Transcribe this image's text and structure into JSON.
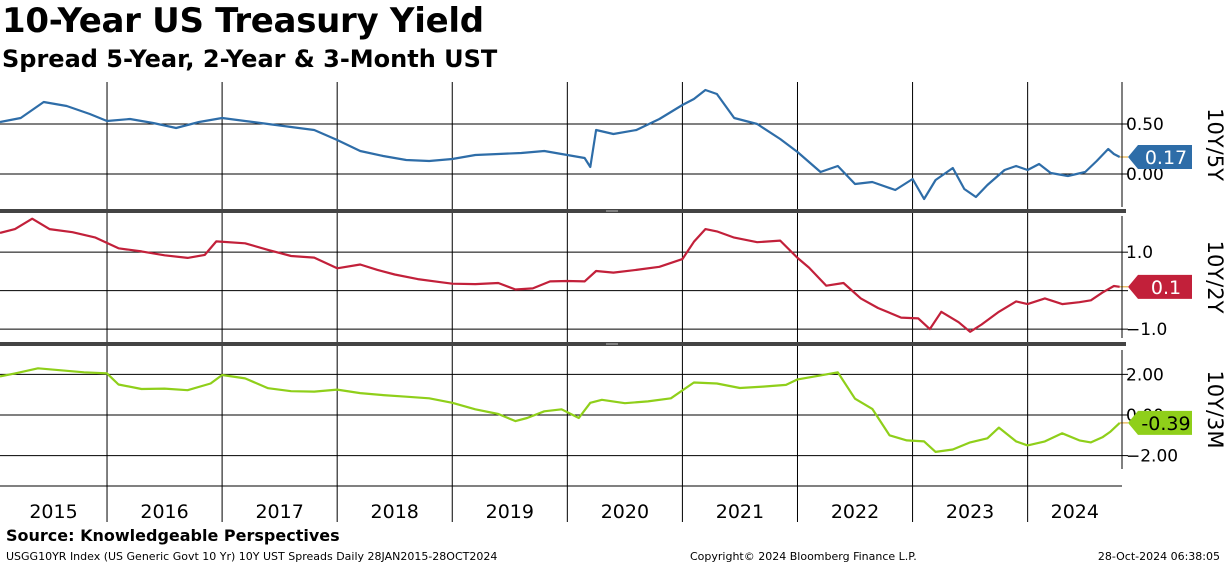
{
  "header": {
    "title": "10-Year US Treasury Yield",
    "subtitle": "Spread 5-Year, 2-Year & 3-Month UST"
  },
  "footer": {
    "source": "Source: Knowledgeable Perspectives",
    "index_info": "USGG10YR Index (US Generic Govt 10 Yr) 10Y UST Spreads  Daily 28JAN2015-28OCT2024",
    "copyright": "Copyright© 2024 Bloomberg Finance L.P.",
    "timestamp": "28-Oct-2024 06:38:05"
  },
  "colors": {
    "tenY5Y": "#2e6da8",
    "tenY2Y": "#c2203a",
    "tenY3M": "#8fcf1a",
    "grid": "#000000",
    "divider": "#444444"
  },
  "chart_data": [
    {
      "type": "line",
      "panel_label": "10Y/5Y",
      "x_unit": "year",
      "x_range": [
        2015.07,
        2024.82
      ],
      "x_tick_labels": [
        "2015",
        "2016",
        "2017",
        "2018",
        "2019",
        "2020",
        "2021",
        "2022",
        "2023",
        "2024"
      ],
      "y_ticks": [
        0.5,
        0.0
      ],
      "y_tick_labels": [
        "0.50",
        "0.00"
      ],
      "ylim": [
        -0.33,
        0.92
      ],
      "last_value_label": "0.17",
      "points": [
        [
          2015.07,
          0.52
        ],
        [
          2015.25,
          0.56
        ],
        [
          2015.45,
          0.72
        ],
        [
          2015.65,
          0.68
        ],
        [
          2015.85,
          0.6
        ],
        [
          2016.0,
          0.53
        ],
        [
          2016.2,
          0.55
        ],
        [
          2016.4,
          0.51
        ],
        [
          2016.6,
          0.46
        ],
        [
          2016.8,
          0.52
        ],
        [
          2017.0,
          0.56
        ],
        [
          2017.2,
          0.53
        ],
        [
          2017.4,
          0.5
        ],
        [
          2017.6,
          0.47
        ],
        [
          2017.8,
          0.44
        ],
        [
          2018.0,
          0.34
        ],
        [
          2018.2,
          0.23
        ],
        [
          2018.4,
          0.18
        ],
        [
          2018.6,
          0.14
        ],
        [
          2018.8,
          0.13
        ],
        [
          2019.0,
          0.15
        ],
        [
          2019.2,
          0.19
        ],
        [
          2019.4,
          0.2
        ],
        [
          2019.6,
          0.21
        ],
        [
          2019.8,
          0.23
        ],
        [
          2020.0,
          0.19
        ],
        [
          2020.15,
          0.16
        ],
        [
          2020.2,
          0.07
        ],
        [
          2020.25,
          0.44
        ],
        [
          2020.4,
          0.4
        ],
        [
          2020.6,
          0.44
        ],
        [
          2020.8,
          0.55
        ],
        [
          2021.0,
          0.69
        ],
        [
          2021.1,
          0.75
        ],
        [
          2021.2,
          0.84
        ],
        [
          2021.3,
          0.8
        ],
        [
          2021.45,
          0.56
        ],
        [
          2021.65,
          0.5
        ],
        [
          2021.85,
          0.35
        ],
        [
          2022.0,
          0.22
        ],
        [
          2022.2,
          0.02
        ],
        [
          2022.35,
          0.08
        ],
        [
          2022.5,
          -0.1
        ],
        [
          2022.65,
          -0.08
        ],
        [
          2022.85,
          -0.16
        ],
        [
          2023.0,
          -0.05
        ],
        [
          2023.1,
          -0.25
        ],
        [
          2023.2,
          -0.06
        ],
        [
          2023.35,
          0.06
        ],
        [
          2023.45,
          -0.15
        ],
        [
          2023.55,
          -0.23
        ],
        [
          2023.65,
          -0.11
        ],
        [
          2023.8,
          0.04
        ],
        [
          2023.9,
          0.08
        ],
        [
          2024.0,
          0.04
        ],
        [
          2024.1,
          0.1
        ],
        [
          2024.2,
          0.01
        ],
        [
          2024.35,
          -0.02
        ],
        [
          2024.5,
          0.02
        ],
        [
          2024.6,
          0.13
        ],
        [
          2024.7,
          0.25
        ],
        [
          2024.75,
          0.2
        ],
        [
          2024.8,
          0.17
        ]
      ]
    },
    {
      "type": "line",
      "panel_label": "10Y/2Y",
      "x_unit": "year",
      "x_range": [
        2015.07,
        2024.82
      ],
      "y_ticks": [
        1.0,
        0.0,
        -1.0
      ],
      "y_tick_labels": [
        "1.0",
        "",
        "−1.0"
      ],
      "ylim": [
        -1.23,
        1.94
      ],
      "last_value_label": "0.1",
      "points": [
        [
          2015.07,
          1.5
        ],
        [
          2015.2,
          1.6
        ],
        [
          2015.35,
          1.87
        ],
        [
          2015.5,
          1.6
        ],
        [
          2015.7,
          1.52
        ],
        [
          2015.9,
          1.38
        ],
        [
          2016.1,
          1.1
        ],
        [
          2016.3,
          1.02
        ],
        [
          2016.5,
          0.92
        ],
        [
          2016.7,
          0.85
        ],
        [
          2016.85,
          0.93
        ],
        [
          2016.95,
          1.28
        ],
        [
          2017.2,
          1.23
        ],
        [
          2017.4,
          1.06
        ],
        [
          2017.6,
          0.9
        ],
        [
          2017.8,
          0.86
        ],
        [
          2018.0,
          0.58
        ],
        [
          2018.2,
          0.68
        ],
        [
          2018.35,
          0.54
        ],
        [
          2018.5,
          0.42
        ],
        [
          2018.7,
          0.3
        ],
        [
          2018.9,
          0.22
        ],
        [
          2019.0,
          0.18
        ],
        [
          2019.2,
          0.17
        ],
        [
          2019.4,
          0.2
        ],
        [
          2019.55,
          0.03
        ],
        [
          2019.7,
          0.06
        ],
        [
          2019.85,
          0.24
        ],
        [
          2020.0,
          0.25
        ],
        [
          2020.15,
          0.24
        ],
        [
          2020.25,
          0.51
        ],
        [
          2020.4,
          0.47
        ],
        [
          2020.6,
          0.54
        ],
        [
          2020.8,
          0.62
        ],
        [
          2021.0,
          0.82
        ],
        [
          2021.1,
          1.27
        ],
        [
          2021.2,
          1.6
        ],
        [
          2021.3,
          1.54
        ],
        [
          2021.45,
          1.38
        ],
        [
          2021.65,
          1.26
        ],
        [
          2021.85,
          1.3
        ],
        [
          2022.0,
          0.85
        ],
        [
          2022.1,
          0.6
        ],
        [
          2022.25,
          0.13
        ],
        [
          2022.4,
          0.2
        ],
        [
          2022.55,
          -0.2
        ],
        [
          2022.7,
          -0.45
        ],
        [
          2022.9,
          -0.7
        ],
        [
          2023.05,
          -0.72
        ],
        [
          2023.15,
          -1.0
        ],
        [
          2023.25,
          -0.55
        ],
        [
          2023.4,
          -0.82
        ],
        [
          2023.5,
          -1.07
        ],
        [
          2023.6,
          -0.88
        ],
        [
          2023.75,
          -0.55
        ],
        [
          2023.9,
          -0.28
        ],
        [
          2024.0,
          -0.35
        ],
        [
          2024.15,
          -0.2
        ],
        [
          2024.3,
          -0.35
        ],
        [
          2024.45,
          -0.3
        ],
        [
          2024.55,
          -0.25
        ],
        [
          2024.65,
          -0.05
        ],
        [
          2024.75,
          0.12
        ],
        [
          2024.8,
          0.1
        ]
      ]
    },
    {
      "type": "line",
      "panel_label": "10Y/3M",
      "x_unit": "year",
      "x_range": [
        2015.07,
        2024.82
      ],
      "y_ticks": [
        2.0,
        0.0,
        -2.0
      ],
      "y_tick_labels": [
        "2.00",
        "0.00",
        "−2.00"
      ],
      "ylim": [
        -2.66,
        3.2
      ],
      "last_value_label": "-0.39",
      "points": [
        [
          2015.07,
          1.9
        ],
        [
          2015.2,
          2.05
        ],
        [
          2015.4,
          2.3
        ],
        [
          2015.6,
          2.2
        ],
        [
          2015.8,
          2.1
        ],
        [
          2016.0,
          2.05
        ],
        [
          2016.1,
          1.5
        ],
        [
          2016.3,
          1.28
        ],
        [
          2016.5,
          1.3
        ],
        [
          2016.7,
          1.22
        ],
        [
          2016.9,
          1.55
        ],
        [
          2017.0,
          1.97
        ],
        [
          2017.2,
          1.8
        ],
        [
          2017.4,
          1.32
        ],
        [
          2017.6,
          1.17
        ],
        [
          2017.8,
          1.15
        ],
        [
          2018.0,
          1.25
        ],
        [
          2018.2,
          1.08
        ],
        [
          2018.4,
          0.98
        ],
        [
          2018.6,
          0.9
        ],
        [
          2018.8,
          0.82
        ],
        [
          2019.0,
          0.6
        ],
        [
          2019.2,
          0.28
        ],
        [
          2019.4,
          0.05
        ],
        [
          2019.55,
          -0.3
        ],
        [
          2019.65,
          -0.15
        ],
        [
          2019.8,
          0.18
        ],
        [
          2019.95,
          0.28
        ],
        [
          2020.1,
          -0.15
        ],
        [
          2020.2,
          0.6
        ],
        [
          2020.3,
          0.75
        ],
        [
          2020.5,
          0.58
        ],
        [
          2020.7,
          0.67
        ],
        [
          2020.9,
          0.82
        ],
        [
          2021.1,
          1.6
        ],
        [
          2021.3,
          1.55
        ],
        [
          2021.5,
          1.33
        ],
        [
          2021.7,
          1.4
        ],
        [
          2021.9,
          1.48
        ],
        [
          2022.0,
          1.75
        ],
        [
          2022.2,
          1.95
        ],
        [
          2022.35,
          2.1
        ],
        [
          2022.5,
          0.8
        ],
        [
          2022.65,
          0.3
        ],
        [
          2022.8,
          -1.0
        ],
        [
          2022.95,
          -1.25
        ],
        [
          2023.1,
          -1.3
        ],
        [
          2023.2,
          -1.82
        ],
        [
          2023.35,
          -1.7
        ],
        [
          2023.5,
          -1.35
        ],
        [
          2023.65,
          -1.15
        ],
        [
          2023.75,
          -0.62
        ],
        [
          2023.9,
          -1.3
        ],
        [
          2024.0,
          -1.5
        ],
        [
          2024.15,
          -1.3
        ],
        [
          2024.3,
          -0.9
        ],
        [
          2024.45,
          -1.25
        ],
        [
          2024.55,
          -1.35
        ],
        [
          2024.65,
          -1.1
        ],
        [
          2024.72,
          -0.82
        ],
        [
          2024.8,
          -0.39
        ]
      ]
    }
  ]
}
